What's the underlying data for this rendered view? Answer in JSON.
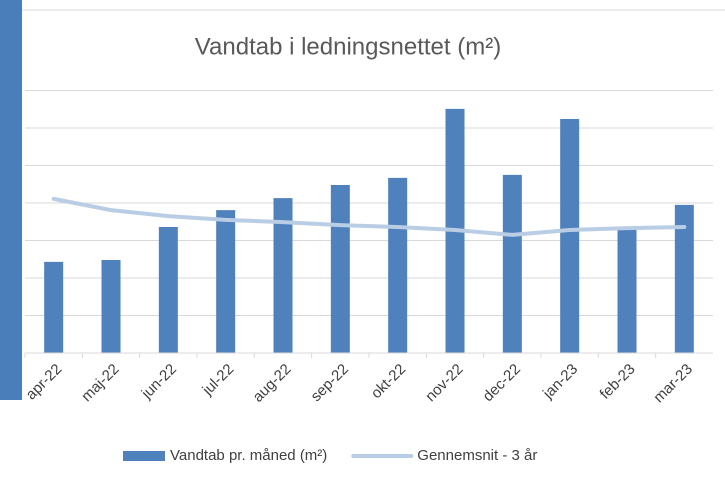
{
  "chart_data": {
    "type": "bar",
    "title": "Vandtab i ledningsnettet (m²)",
    "categories": [
      "apr-22",
      "maj-22",
      "jun-22",
      "jul-22",
      "aug-22",
      "sep-22",
      "okt-22",
      "nov-22",
      "dec-22",
      "jan-23",
      "feb-23",
      "mar-23"
    ],
    "series": [
      {
        "name": "Vandtab pr. måned (m²)",
        "type": "bar",
        "color": "#4f81bd",
        "values": [
          2.43,
          2.48,
          3.36,
          3.81,
          4.13,
          4.48,
          4.67,
          6.51,
          4.75,
          6.24,
          3.28,
          3.95
        ]
      },
      {
        "name": "Gennemsnit - 3 år",
        "type": "line",
        "color": "#b9cde5",
        "values": [
          4.11,
          3.81,
          3.65,
          3.55,
          3.49,
          3.41,
          3.36,
          3.28,
          3.15,
          3.28,
          3.33,
          3.36
        ]
      }
    ],
    "ylim": [
      0,
      8
    ],
    "yticks": [
      0,
      1,
      2,
      3,
      4,
      5,
      6,
      7
    ],
    "grid": true,
    "legend": "bottom"
  }
}
